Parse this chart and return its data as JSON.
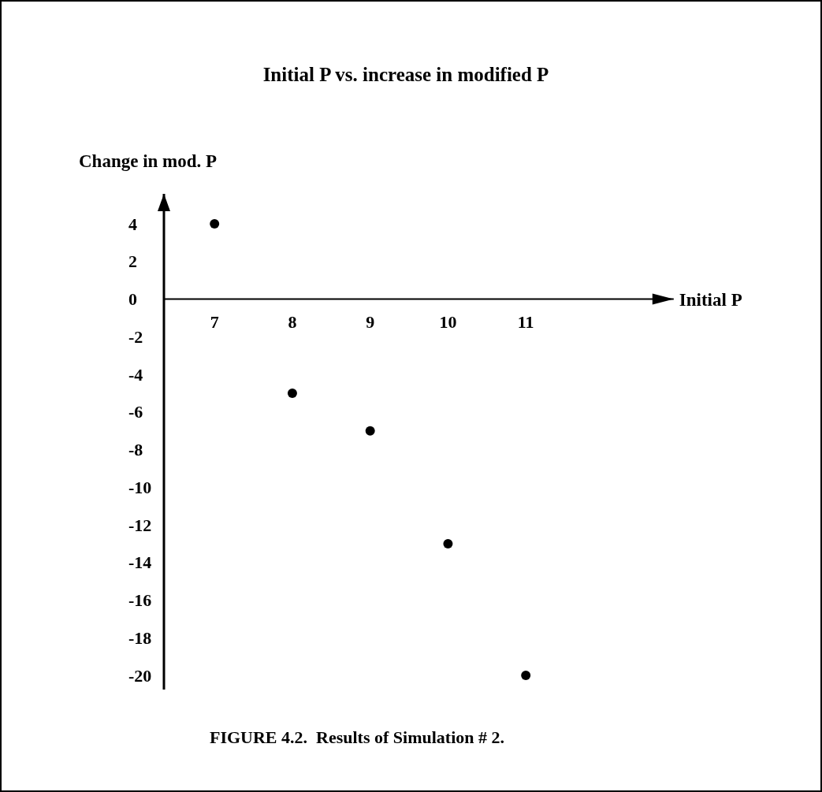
{
  "chart_data": {
    "type": "scatter",
    "title": "Initial P vs. increase in modified P",
    "xlabel": "Initial P",
    "ylabel": "Change in mod. P",
    "annotations": [
      "FIGURE 4.2.  Results of Simulation # 2."
    ],
    "x": [
      7,
      8,
      9,
      10,
      11
    ],
    "series": [
      {
        "color": "#000000",
        "values": [
          4,
          -5,
          -7,
          -13,
          -20
        ]
      }
    ],
    "xlim": [
      6.35,
      12.9
    ],
    "xticks": [
      7,
      8,
      9,
      10,
      11
    ],
    "ylim": [
      -20.75,
      5.6
    ],
    "yticks": [
      4,
      2,
      0,
      -2,
      -4,
      -6,
      -8,
      -10,
      -12,
      -14,
      -16,
      -18,
      -20
    ],
    "grid": false,
    "marker": "circle"
  }
}
